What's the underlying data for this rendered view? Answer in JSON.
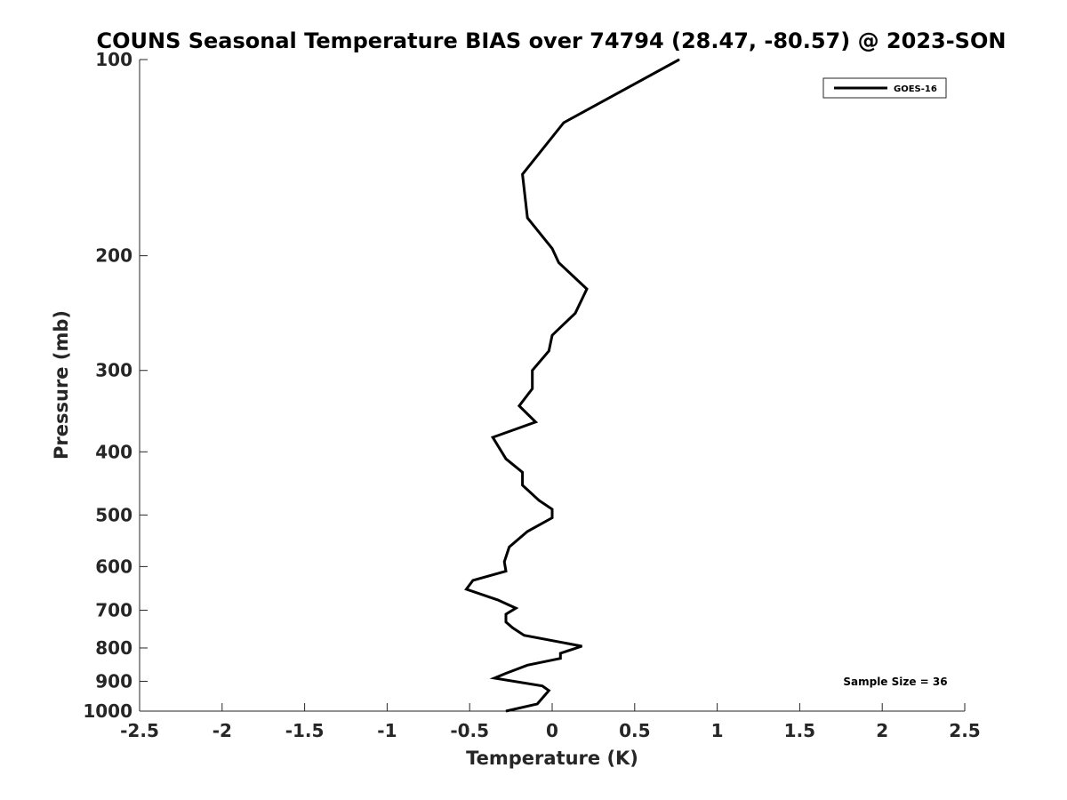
{
  "chart_data": {
    "type": "line",
    "title": "COUNS Seasonal Temperature BIAS over 74794 (28.47, -80.57) @ 2023-SON",
    "xlabel": "Temperature (K)",
    "ylabel": "Pressure (mb)",
    "xlim": [
      -2.5,
      2.5
    ],
    "ylim": [
      100,
      1000
    ],
    "yscale": "log",
    "y_reversed": true,
    "grid": false,
    "legend_position": "top-right",
    "x_ticks": [
      -2.5,
      -2,
      -1.5,
      -1,
      -0.5,
      0,
      0.5,
      1,
      1.5,
      2,
      2.5
    ],
    "x_tick_labels": [
      "-2.5",
      "-2",
      "-1.5",
      "-1",
      "-0.5",
      "0",
      "0.5",
      "1",
      "1.5",
      "2",
      "2.5"
    ],
    "y_ticks": [
      100,
      200,
      300,
      400,
      500,
      600,
      700,
      800,
      900,
      1000
    ],
    "y_tick_labels": [
      "100",
      "200",
      "300",
      "400",
      "500",
      "600",
      "700",
      "800",
      "900",
      "1000"
    ],
    "annotation": "Sample Size = 36",
    "series": [
      {
        "name": "GOES-16",
        "color": "#000000",
        "points": [
          {
            "x": 0.77,
            "y": 100
          },
          {
            "x": 0.07,
            "y": 125
          },
          {
            "x": -0.18,
            "y": 150
          },
          {
            "x": -0.15,
            "y": 175
          },
          {
            "x": 0.0,
            "y": 195
          },
          {
            "x": 0.04,
            "y": 205
          },
          {
            "x": 0.21,
            "y": 225
          },
          {
            "x": 0.14,
            "y": 245
          },
          {
            "x": 0.0,
            "y": 265
          },
          {
            "x": -0.02,
            "y": 280
          },
          {
            "x": -0.12,
            "y": 300
          },
          {
            "x": -0.12,
            "y": 320
          },
          {
            "x": -0.2,
            "y": 340
          },
          {
            "x": -0.1,
            "y": 360
          },
          {
            "x": -0.36,
            "y": 380
          },
          {
            "x": -0.28,
            "y": 410
          },
          {
            "x": -0.18,
            "y": 430
          },
          {
            "x": -0.18,
            "y": 450
          },
          {
            "x": -0.08,
            "y": 475
          },
          {
            "x": 0.0,
            "y": 490
          },
          {
            "x": 0.0,
            "y": 505
          },
          {
            "x": -0.15,
            "y": 530
          },
          {
            "x": -0.26,
            "y": 560
          },
          {
            "x": -0.29,
            "y": 590
          },
          {
            "x": -0.28,
            "y": 610
          },
          {
            "x": -0.48,
            "y": 630
          },
          {
            "x": -0.52,
            "y": 650
          },
          {
            "x": -0.33,
            "y": 675
          },
          {
            "x": -0.22,
            "y": 695
          },
          {
            "x": -0.28,
            "y": 710
          },
          {
            "x": -0.28,
            "y": 730
          },
          {
            "x": -0.24,
            "y": 745
          },
          {
            "x": -0.17,
            "y": 765
          },
          {
            "x": 0.18,
            "y": 795
          },
          {
            "x": 0.05,
            "y": 815
          },
          {
            "x": 0.05,
            "y": 830
          },
          {
            "x": -0.15,
            "y": 850
          },
          {
            "x": -0.28,
            "y": 875
          },
          {
            "x": -0.35,
            "y": 890
          },
          {
            "x": -0.06,
            "y": 915
          },
          {
            "x": -0.02,
            "y": 930
          },
          {
            "x": -0.09,
            "y": 975
          },
          {
            "x": -0.28,
            "y": 1000
          }
        ]
      }
    ]
  }
}
